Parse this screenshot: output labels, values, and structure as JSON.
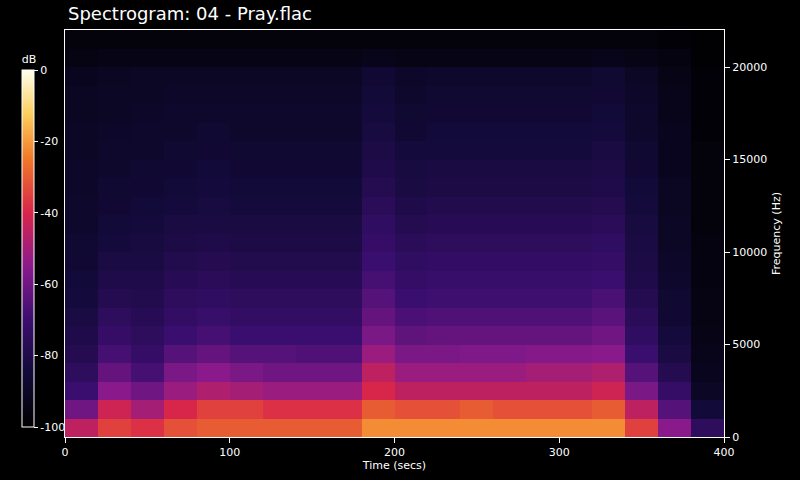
{
  "chart_data": {
    "type": "heatmap",
    "title": "Spectrogram: 04 - Pray.flac",
    "x_label": "Time (secs)",
    "y_label": "Frequency (Hz)",
    "x": [
      10,
      30,
      50,
      70,
      90,
      110,
      130,
      150,
      170,
      190,
      210,
      230,
      250,
      270,
      290,
      310,
      330,
      350,
      370,
      390
    ],
    "y": [
      500,
      1500,
      2500,
      3500,
      4500,
      5500,
      6500,
      7500,
      8500,
      9500,
      10500,
      11500,
      12500,
      13500,
      14500,
      15500,
      16500,
      17500,
      18500,
      19500,
      20500,
      21500
    ],
    "z": [
      [
        -45,
        -35,
        -38,
        -32,
        -30,
        -30,
        -30,
        -30,
        -30,
        -22,
        -22,
        -22,
        -22,
        -22,
        -22,
        -22,
        -22,
        -35,
        -55,
        -75
      ],
      [
        -60,
        -42,
        -50,
        -40,
        -35,
        -35,
        -38,
        -38,
        -38,
        -30,
        -32,
        -32,
        -30,
        -32,
        -32,
        -32,
        -30,
        -45,
        -65,
        -85
      ],
      [
        -70,
        -55,
        -60,
        -52,
        -48,
        -50,
        -52,
        -52,
        -52,
        -40,
        -45,
        -45,
        -45,
        -45,
        -45,
        -45,
        -42,
        -58,
        -72,
        -90
      ],
      [
        -75,
        -62,
        -68,
        -58,
        -55,
        -58,
        -60,
        -60,
        -60,
        -45,
        -52,
        -52,
        -52,
        -52,
        -50,
        -50,
        -48,
        -65,
        -78,
        -92
      ],
      [
        -78,
        -68,
        -72,
        -65,
        -62,
        -65,
        -65,
        -66,
        -66,
        -52,
        -58,
        -58,
        -57,
        -57,
        -56,
        -56,
        -55,
        -70,
        -82,
        -93
      ],
      [
        -80,
        -72,
        -75,
        -70,
        -68,
        -70,
        -70,
        -70,
        -70,
        -58,
        -63,
        -62,
        -62,
        -62,
        -62,
        -62,
        -60,
        -74,
        -84,
        -94
      ],
      [
        -82,
        -75,
        -77,
        -73,
        -71,
        -73,
        -73,
        -73,
        -73,
        -62,
        -67,
        -66,
        -66,
        -66,
        -66,
        -66,
        -64,
        -76,
        -86,
        -95
      ],
      [
        -84,
        -78,
        -79,
        -75,
        -74,
        -75,
        -75,
        -75,
        -75,
        -65,
        -70,
        -69,
        -69,
        -69,
        -69,
        -69,
        -67,
        -78,
        -87,
        -95
      ],
      [
        -85,
        -80,
        -80,
        -77,
        -76,
        -77,
        -77,
        -77,
        -77,
        -68,
        -72,
        -71,
        -71,
        -71,
        -71,
        -71,
        -70,
        -80,
        -88,
        -96
      ],
      [
        -86,
        -82,
        -82,
        -79,
        -78,
        -79,
        -79,
        -79,
        -79,
        -70,
        -74,
        -73,
        -73,
        -73,
        -73,
        -73,
        -72,
        -81,
        -89,
        -96
      ],
      [
        -87,
        -84,
        -83,
        -81,
        -80,
        -81,
        -81,
        -81,
        -81,
        -72,
        -76,
        -75,
        -75,
        -75,
        -75,
        -75,
        -74,
        -82,
        -90,
        -96
      ],
      [
        -88,
        -85,
        -84,
        -82,
        -82,
        -82,
        -82,
        -82,
        -82,
        -74,
        -78,
        -77,
        -77,
        -77,
        -77,
        -77,
        -76,
        -83,
        -90,
        -97
      ],
      [
        -88,
        -86,
        -85,
        -84,
        -83,
        -84,
        -84,
        -84,
        -84,
        -76,
        -80,
        -79,
        -79,
        -79,
        -79,
        -79,
        -78,
        -84,
        -91,
        -97
      ],
      [
        -89,
        -87,
        -86,
        -85,
        -84,
        -85,
        -85,
        -85,
        -85,
        -78,
        -82,
        -81,
        -81,
        -81,
        -81,
        -81,
        -80,
        -85,
        -91,
        -97
      ],
      [
        -89,
        -88,
        -87,
        -86,
        -85,
        -86,
        -86,
        -86,
        -86,
        -80,
        -83,
        -82,
        -82,
        -82,
        -82,
        -82,
        -81,
        -86,
        -92,
        -97
      ],
      [
        -90,
        -88,
        -88,
        -87,
        -86,
        -87,
        -87,
        -87,
        -87,
        -81,
        -84,
        -84,
        -84,
        -84,
        -84,
        -84,
        -82,
        -87,
        -92,
        -97
      ],
      [
        -90,
        -89,
        -88,
        -88,
        -87,
        -88,
        -88,
        -88,
        -88,
        -83,
        -86,
        -85,
        -85,
        -85,
        -85,
        -85,
        -84,
        -88,
        -92,
        -98
      ],
      [
        -91,
        -90,
        -89,
        -88,
        -88,
        -88,
        -88,
        -88,
        -88,
        -84,
        -87,
        -86,
        -86,
        -86,
        -86,
        -86,
        -85,
        -88,
        -93,
        -98
      ],
      [
        -91,
        -90,
        -90,
        -89,
        -89,
        -89,
        -89,
        -89,
        -89,
        -85,
        -88,
        -87,
        -87,
        -87,
        -87,
        -87,
        -86,
        -89,
        -93,
        -98
      ],
      [
        -92,
        -91,
        -90,
        -90,
        -90,
        -90,
        -90,
        -90,
        -90,
        -86,
        -89,
        -88,
        -88,
        -88,
        -88,
        -88,
        -87,
        -90,
        -94,
        -98
      ],
      [
        -95,
        -94,
        -94,
        -94,
        -94,
        -94,
        -94,
        -94,
        -94,
        -93,
        -94,
        -94,
        -94,
        -94,
        -94,
        -94,
        -93,
        -94,
        -96,
        -99
      ],
      [
        -97,
        -97,
        -97,
        -97,
        -97,
        -97,
        -97,
        -97,
        -97,
        -97,
        -97,
        -97,
        -97,
        -97,
        -97,
        -97,
        -97,
        -97,
        -98,
        -99
      ]
    ],
    "xlim": [
      0,
      400
    ],
    "xticks": [
      0,
      100,
      200,
      300,
      400
    ],
    "ylim": [
      0,
      22000
    ],
    "yticks": [
      0,
      5000,
      10000,
      15000,
      20000
    ],
    "colorbar": {
      "title": "dB",
      "range": [
        -100,
        0
      ],
      "ticks": [
        0,
        -20,
        -40,
        -60,
        -80,
        -100
      ]
    }
  }
}
